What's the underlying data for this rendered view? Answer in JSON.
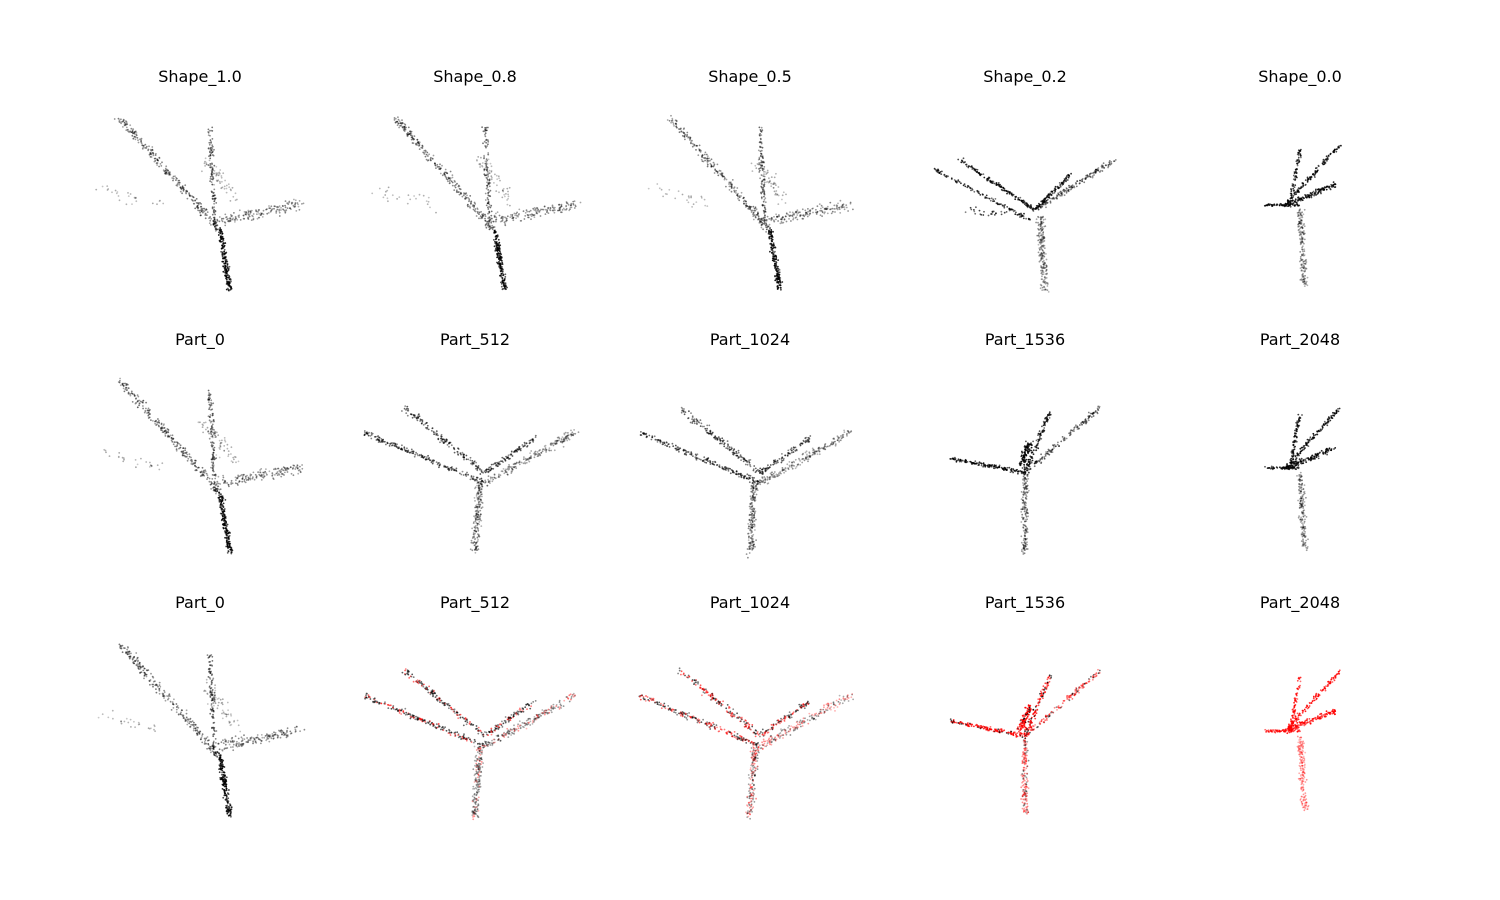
{
  "figure": {
    "rows": [
      {
        "titles": [
          "Shape_1.0",
          "Shape_0.8",
          "Shape_0.5",
          "Shape_0.2",
          "Shape_0.0"
        ]
      },
      {
        "titles": [
          "Part_0",
          "Part_512",
          "Part_1024",
          "Part_1536",
          "Part_2048"
        ]
      },
      {
        "titles": [
          "Part_0",
          "Part_512",
          "Part_1024",
          "Part_1536",
          "Part_2048"
        ]
      }
    ]
  },
  "chart_data": {
    "type": "scatter",
    "description_free": true,
    "axes": "off",
    "grid": false,
    "colors": {
      "base": "#000000",
      "highlight": "#ff0000"
    },
    "panels": [
      {
        "row": 0,
        "col": 0,
        "title": "Shape_1.0",
        "shape": "upright_v",
        "spread": 1.0,
        "red_fraction": 0.0
      },
      {
        "row": 0,
        "col": 1,
        "title": "Shape_0.8",
        "shape": "upright_v",
        "spread": 0.8,
        "red_fraction": 0.0
      },
      {
        "row": 0,
        "col": 2,
        "title": "Shape_0.5",
        "shape": "upright_v",
        "spread": 0.5,
        "red_fraction": 0.0
      },
      {
        "row": 0,
        "col": 3,
        "title": "Shape_0.2",
        "shape": "spread_branches",
        "spread": 0.2,
        "red_fraction": 0.0
      },
      {
        "row": 0,
        "col": 4,
        "title": "Shape_0.0",
        "shape": "narrow_hand",
        "spread": 0.0,
        "red_fraction": 0.0
      },
      {
        "row": 1,
        "col": 0,
        "title": "Part_0",
        "shape": "upright_v",
        "spread": 1.0,
        "red_fraction": 0.0
      },
      {
        "row": 1,
        "col": 1,
        "title": "Part_512",
        "shape": "wide_fan",
        "spread": 0.7,
        "red_fraction": 0.0
      },
      {
        "row": 1,
        "col": 2,
        "title": "Part_1024",
        "shape": "wide_fan",
        "spread": 0.6,
        "red_fraction": 0.0
      },
      {
        "row": 1,
        "col": 3,
        "title": "Part_1536",
        "shape": "compact_fan",
        "spread": 0.3,
        "red_fraction": 0.0
      },
      {
        "row": 1,
        "col": 4,
        "title": "Part_2048",
        "shape": "narrow_hand",
        "spread": 0.0,
        "red_fraction": 0.0
      },
      {
        "row": 2,
        "col": 0,
        "title": "Part_0",
        "shape": "upright_v",
        "spread": 1.0,
        "red_fraction": 0.0
      },
      {
        "row": 2,
        "col": 1,
        "title": "Part_512",
        "shape": "wide_fan",
        "spread": 0.7,
        "red_fraction": 0.25
      },
      {
        "row": 2,
        "col": 2,
        "title": "Part_1024",
        "shape": "wide_fan",
        "spread": 0.6,
        "red_fraction": 0.5
      },
      {
        "row": 2,
        "col": 3,
        "title": "Part_1536",
        "shape": "compact_fan",
        "spread": 0.3,
        "red_fraction": 0.75
      },
      {
        "row": 2,
        "col": 4,
        "title": "Part_2048",
        "shape": "narrow_hand",
        "spread": 0.0,
        "red_fraction": 1.0
      }
    ]
  }
}
